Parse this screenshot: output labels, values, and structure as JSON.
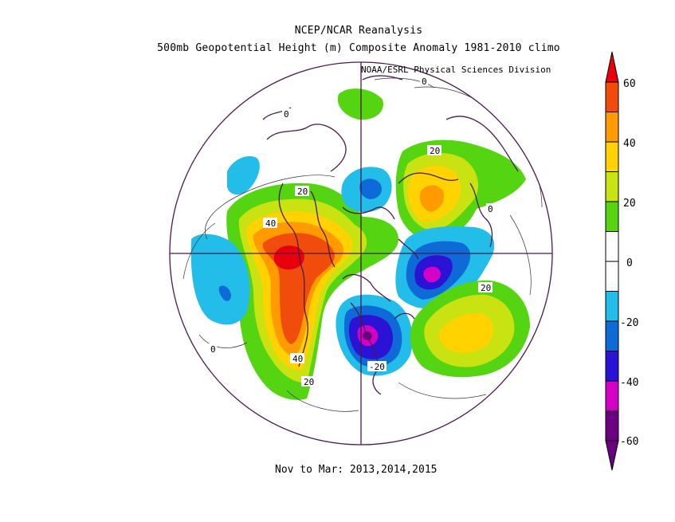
{
  "title_line1": "NCEP/NCAR Reanalysis",
  "title_line2": "500mb Geopotential Height (m) Composite Anomaly 1981-2010 climo",
  "credit": "NOAA/ESRL Physical Sciences Division",
  "footer": "Nov to Mar: 2013,2014,2015",
  "colorbar": {
    "ticks": [
      "60",
      "40",
      "20",
      "0",
      "-20",
      "-40",
      "-60"
    ],
    "colors": [
      "#6b0080",
      "#d400c8",
      "#2a13d4",
      "#0e6ad6",
      "#22bde8",
      "#ffffff",
      "#ffffff",
      "#55d511",
      "#c8e212",
      "#ffd200",
      "#ff9a00",
      "#f04c0c",
      "#e8000c"
    ]
  },
  "contour_labels": [
    "20",
    "40",
    "0",
    "20",
    "0",
    "20",
    "0",
    "40",
    "20",
    "-20",
    "0"
  ],
  "palette": {
    "green": "#55d511",
    "yellowgreen": "#c8e212",
    "yellow": "#ffd200",
    "orange": "#ff9a00",
    "deeporange": "#f04c0c",
    "red": "#e8000c",
    "lightblue": "#22bde8",
    "blue": "#0e6ad6",
    "darkblue": "#2a13d4",
    "magenta": "#d400c8",
    "purple": "#6b0080",
    "map_line": "#4a1a4a"
  }
}
